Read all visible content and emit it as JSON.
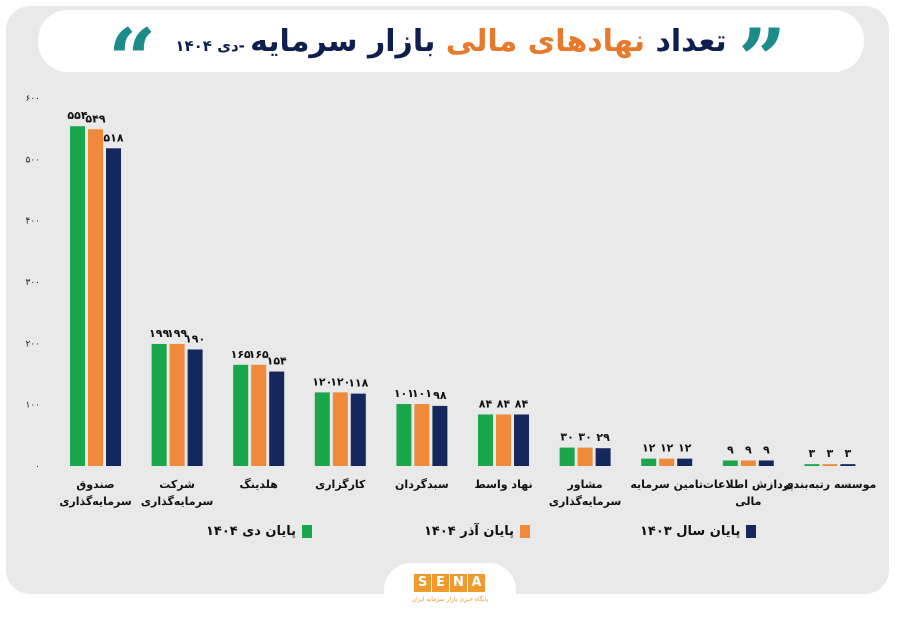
{
  "header": {
    "title_main": "تعداد ",
    "title_accent": "نهادهای مالی",
    "title_rest": " بازار سرمایه",
    "subtitle": " -دی ۱۴۰۴",
    "quote_left": "“",
    "quote_right": "”"
  },
  "colors": {
    "green": "#1aa64b",
    "orange": "#ee8a3a",
    "navy": "#14285e",
    "teal": "#1e8b8b",
    "title_navy": "#0e1f4f",
    "title_orange": "#e8792a"
  },
  "logo": {
    "letters": [
      "S",
      "E",
      "N",
      "A"
    ],
    "tagline": "پایگاه خبری بازار سرمایه ایران"
  },
  "chart_data": {
    "type": "bar",
    "ylim": [
      0,
      600
    ],
    "ytick_values": [
      0,
      100,
      200,
      300,
      400,
      500,
      600
    ],
    "ytick_labels": [
      "۰",
      "۱۰۰",
      "۲۰۰",
      "۳۰۰",
      "۴۰۰",
      "۵۰۰",
      "۶۰۰"
    ],
    "grid": false,
    "legend_position": "bottom",
    "categories": [
      [
        "صندوق",
        "سرمایه‌گذاری"
      ],
      [
        "شرکت",
        "سرمایه‌گذاری"
      ],
      [
        "هلدینگ"
      ],
      [
        "کارگزاری"
      ],
      [
        "سبدگردان"
      ],
      [
        "نهاد واسط"
      ],
      [
        "مشاور",
        "سرمایه‌گذاری"
      ],
      [
        "تامین سرمایه"
      ],
      [
        "پردازش اطلاعات",
        "مالی"
      ],
      [
        "موسسه رتبه‌بندی"
      ]
    ],
    "series": [
      {
        "name": "پایان دی ۱۴۰۴",
        "color": "#1aa64b",
        "values": [
          554,
          199,
          165,
          120,
          101,
          84,
          30,
          12,
          9,
          3
        ],
        "labels": [
          "۵۵۴",
          "۱۹۹",
          "۱۶۵",
          "۱۲۰",
          "۱۰۱",
          "۸۴",
          "۳۰",
          "۱۲",
          "۹",
          "۳"
        ]
      },
      {
        "name": "پایان آذر ۱۴۰۴",
        "color": "#ee8a3a",
        "values": [
          549,
          199,
          165,
          120,
          101,
          84,
          30,
          12,
          9,
          3
        ],
        "labels": [
          "۵۴۹",
          "۱۹۹",
          "۱۶۵",
          "۱۲۰",
          "۱۰۱",
          "۸۴",
          "۳۰",
          "۱۲",
          "۹",
          "۳"
        ]
      },
      {
        "name": "پایان سال ۱۴۰۳",
        "color": "#14285e",
        "values": [
          518,
          190,
          154,
          118,
          98,
          84,
          29,
          12,
          9,
          3
        ],
        "labels": [
          "۵۱۸",
          "۱۹۰",
          "۱۵۴",
          "۱۱۸",
          "۹۸",
          "۸۴",
          "۲۹",
          "۱۲",
          "۹",
          "۳"
        ]
      }
    ]
  }
}
